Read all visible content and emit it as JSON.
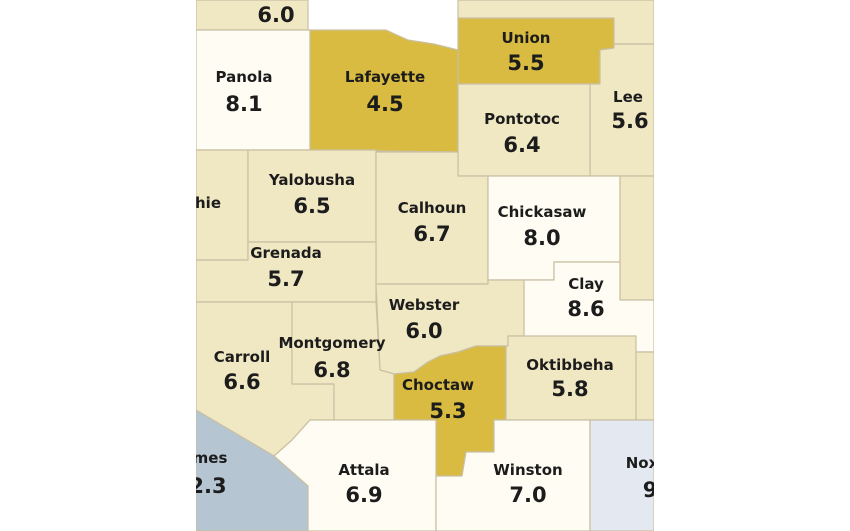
{
  "map": {
    "colors": {
      "high": "#d8bb40",
      "mid": "#f0e7c3",
      "low": "#fbf8e8",
      "lowest": "#fefcf3",
      "blue": "#b6c5d2",
      "pale_blue": "#e4e9f1",
      "border": "#c9c0a3"
    },
    "counties": [
      {
        "id": "tate-partial",
        "name": "",
        "value": "6.0",
        "shade": "mid"
      },
      {
        "id": "panola",
        "name": "Panola",
        "value": "8.1",
        "shade": "lowest"
      },
      {
        "id": "lafayette",
        "name": "Lafayette",
        "value": "4.5",
        "shade": "high"
      },
      {
        "id": "union",
        "name": "Union",
        "value": "5.5",
        "shade": "high"
      },
      {
        "id": "lee",
        "name": "Lee",
        "value": "5.6",
        "shade": "mid"
      },
      {
        "id": "pontotoc",
        "name": "Pontotoc",
        "value": "6.4",
        "shade": "mid"
      },
      {
        "id": "tallahatchie-partial",
        "name": "hie",
        "value": "",
        "shade": "mid"
      },
      {
        "id": "yalobusha",
        "name": "Yalobusha",
        "value": "6.5",
        "shade": "mid"
      },
      {
        "id": "calhoun",
        "name": "Calhoun",
        "value": "6.7",
        "shade": "mid"
      },
      {
        "id": "chickasaw",
        "name": "Chickasaw",
        "value": "8.0",
        "shade": "lowest"
      },
      {
        "id": "grenada",
        "name": "Grenada",
        "value": "5.7",
        "shade": "mid"
      },
      {
        "id": "clay",
        "name": "Clay",
        "value": "8.6",
        "shade": "lowest"
      },
      {
        "id": "webster",
        "name": "Webster",
        "value": "6.0",
        "shade": "mid"
      },
      {
        "id": "carroll",
        "name": "Carroll",
        "value": "6.6",
        "shade": "mid"
      },
      {
        "id": "montgomery",
        "name": "Montgomery",
        "value": "6.8",
        "shade": "mid"
      },
      {
        "id": "choctaw",
        "name": "Choctaw",
        "value": "5.3",
        "shade": "high"
      },
      {
        "id": "oktibbeha",
        "name": "Oktibbeha",
        "value": "5.8",
        "shade": "mid"
      },
      {
        "id": "holmes-partial",
        "name": "mes",
        "value": "2.3",
        "shade": "blue"
      },
      {
        "id": "attala",
        "name": "Attala",
        "value": "6.9",
        "shade": "lowest"
      },
      {
        "id": "winston",
        "name": "Winston",
        "value": "7.0",
        "shade": "lowest"
      },
      {
        "id": "noxubee-partial",
        "name": "Nox",
        "value": "9",
        "shade": "pale_blue"
      },
      {
        "id": "filler-upper-right",
        "name": "",
        "value": "",
        "shade": "mid"
      },
      {
        "id": "filler-top-right",
        "name": "",
        "value": "",
        "shade": "mid"
      },
      {
        "id": "filler-right",
        "name": "",
        "value": "",
        "shade": "mid"
      },
      {
        "id": "filler-bottom-right",
        "name": "",
        "value": "",
        "shade": "low"
      }
    ]
  }
}
